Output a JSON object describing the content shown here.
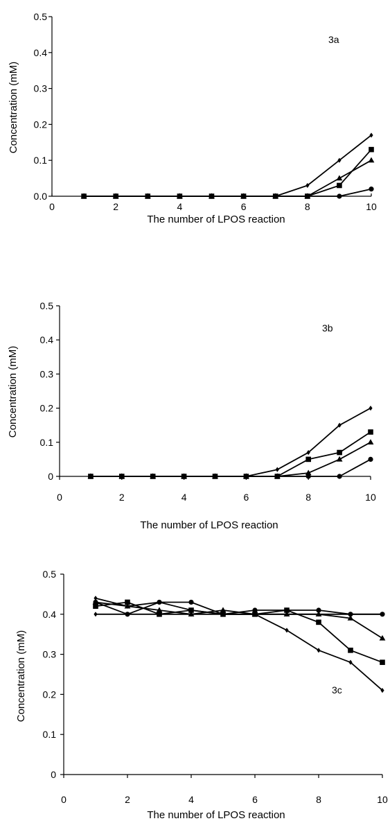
{
  "chart_data": [
    {
      "type": "line",
      "annotation": "3a",
      "xlabel": "The number of LPOS reaction",
      "ylabel": "Concentration (mM)",
      "xlim": [
        0,
        10
      ],
      "ylim": [
        0,
        0.5
      ],
      "xticks": [
        "0",
        "2",
        "4",
        "6",
        "8",
        "10"
      ],
      "yticks": [
        "0.0",
        "0.1",
        "0.2",
        "0.3",
        "0.4",
        "0.5"
      ],
      "x": [
        1,
        2,
        3,
        4,
        5,
        6,
        7,
        8,
        9,
        10
      ],
      "series": [
        {
          "marker": "diamond",
          "values": [
            0,
            0,
            0,
            0,
            0,
            0,
            0,
            0.03,
            0.1,
            0.17
          ]
        },
        {
          "marker": "triangle",
          "values": [
            0,
            0,
            0,
            0,
            0,
            0,
            0,
            0,
            0.05,
            0.1
          ]
        },
        {
          "marker": "square",
          "values": [
            0,
            0,
            0,
            0,
            0,
            0,
            0,
            0,
            0.03,
            0.13
          ]
        },
        {
          "marker": "circle",
          "values": [
            0,
            0,
            0,
            0,
            0,
            0,
            0,
            0,
            0,
            0.02
          ]
        }
      ],
      "legend": "none",
      "grid": false
    },
    {
      "type": "line",
      "annotation": "3b",
      "xlabel": "The number of LPOS reaction",
      "ylabel": "Concentration (mM)",
      "xlim": [
        0,
        10
      ],
      "ylim": [
        0,
        0.5
      ],
      "xticks": [
        "0",
        "2",
        "4",
        "6",
        "8",
        "10"
      ],
      "yticks": [
        "0",
        "0.1",
        "0.2",
        "0.3",
        "0.4",
        "0.5"
      ],
      "x": [
        1,
        2,
        3,
        4,
        5,
        6,
        7,
        8,
        9,
        10
      ],
      "series": [
        {
          "marker": "diamond",
          "values": [
            0,
            0,
            0,
            0,
            0,
            0,
            0.02,
            0.07,
            0.15,
            0.2
          ]
        },
        {
          "marker": "square",
          "values": [
            0,
            0,
            0,
            0,
            0,
            0,
            0,
            0.05,
            0.07,
            0.13
          ]
        },
        {
          "marker": "triangle",
          "values": [
            0,
            0,
            0,
            0,
            0,
            0,
            0,
            0.01,
            0.05,
            0.1
          ]
        },
        {
          "marker": "circle",
          "values": [
            0,
            0,
            0,
            0,
            0,
            0,
            0,
            0,
            0,
            0.05
          ]
        }
      ],
      "legend": "none",
      "grid": false
    },
    {
      "type": "line",
      "annotation": "3c",
      "xlabel": "The number of LPOS reaction",
      "ylabel": "Concentration (mM)",
      "xlim": [
        0,
        10
      ],
      "ylim": [
        0,
        0.5
      ],
      "xticks": [
        "0",
        "2",
        "4",
        "6",
        "8",
        "10"
      ],
      "yticks": [
        "0",
        "0.1",
        "0.2",
        "0.3",
        "0.4",
        "0.5"
      ],
      "x": [
        1,
        2,
        3,
        4,
        5,
        6,
        7,
        8,
        9,
        10
      ],
      "series": [
        {
          "marker": "circle",
          "values": [
            0.43,
            0.4,
            0.43,
            0.43,
            0.4,
            0.41,
            0.41,
            0.41,
            0.4,
            0.4
          ]
        },
        {
          "marker": "triangle",
          "values": [
            0.43,
            0.42,
            0.41,
            0.4,
            0.41,
            0.4,
            0.4,
            0.4,
            0.39,
            0.34
          ]
        },
        {
          "marker": "square",
          "values": [
            0.42,
            0.43,
            0.4,
            0.41,
            0.4,
            0.4,
            0.41,
            0.38,
            0.31,
            0.28
          ]
        },
        {
          "marker": "diamond",
          "values": [
            0.44,
            0.42,
            0.43,
            0.41,
            0.4,
            0.4,
            0.36,
            0.31,
            0.28,
            0.21
          ]
        },
        {
          "marker": "diamond",
          "values": [
            0.4,
            0.4,
            0.4,
            0.4,
            0.4,
            0.4,
            0.4,
            0.4,
            0.4,
            0.4
          ]
        }
      ],
      "legend": "none",
      "grid": false
    }
  ]
}
